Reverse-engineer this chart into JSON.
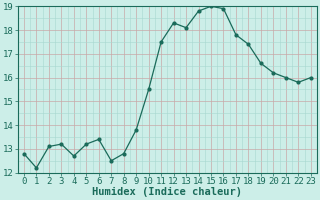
{
  "x": [
    0,
    1,
    2,
    3,
    4,
    5,
    6,
    7,
    8,
    9,
    10,
    11,
    12,
    13,
    14,
    15,
    16,
    17,
    18,
    19,
    20,
    21,
    22,
    23
  ],
  "y": [
    12.8,
    12.2,
    13.1,
    13.2,
    12.7,
    13.2,
    13.4,
    12.5,
    12.8,
    13.8,
    15.5,
    17.5,
    18.3,
    18.1,
    18.8,
    19.0,
    18.9,
    17.8,
    17.4,
    16.6,
    16.2,
    16.0,
    15.8,
    16.0
  ],
  "line_color": "#1a6b5a",
  "marker_color": "#1a6b5a",
  "bg_color": "#cceee8",
  "grid_color_minor": "#a8d8d0",
  "grid_color_major": "#c8a8a8",
  "xlabel": "Humidex (Indice chaleur)",
  "ylim": [
    12,
    19
  ],
  "xlim": [
    -0.5,
    23.5
  ],
  "yticks": [
    12,
    13,
    14,
    15,
    16,
    17,
    18,
    19
  ],
  "xticks": [
    0,
    1,
    2,
    3,
    4,
    5,
    6,
    7,
    8,
    9,
    10,
    11,
    12,
    13,
    14,
    15,
    16,
    17,
    18,
    19,
    20,
    21,
    22,
    23
  ],
  "xlabel_fontsize": 7.5,
  "tick_fontsize": 6.5
}
